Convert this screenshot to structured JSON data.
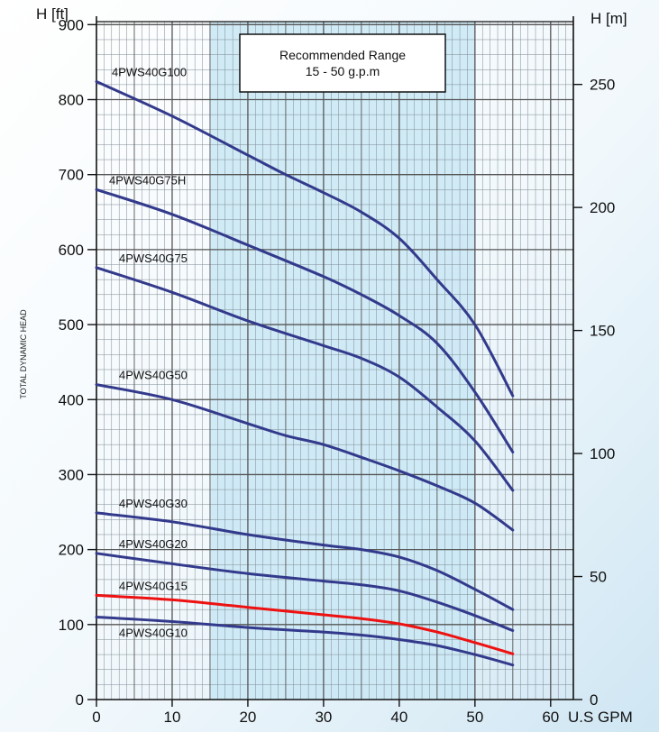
{
  "chart_data": {
    "type": "line",
    "y_axis_label": "TOTAL DYNAMIC HEAD",
    "y_unit_left": "H [ft]",
    "y_unit_right": "H [m]",
    "x_unit": "U.S GPM",
    "xlim": [
      0,
      63
    ],
    "ylim_ft": [
      0,
      900
    ],
    "x_ticks": [
      0,
      10,
      20,
      30,
      40,
      50,
      60
    ],
    "y_ticks_ft": [
      0,
      100,
      200,
      300,
      400,
      500,
      600,
      700,
      800,
      900
    ],
    "y_ticks_m": [
      0,
      50,
      100,
      150,
      200,
      250
    ],
    "grid": true,
    "recommended_range": {
      "line1": "Recommended Range",
      "line2": "15 - 50 g.p.m",
      "x_start": 15,
      "x_end": 50,
      "color": "#c9e7f4"
    },
    "series": [
      {
        "name": "4PWS40G100",
        "color": "#333a8c",
        "x": [
          0,
          10,
          20,
          25,
          30,
          35,
          40,
          45,
          50,
          55
        ],
        "y": [
          824,
          778,
          726,
          700,
          676,
          650,
          615,
          560,
          500,
          405
        ]
      },
      {
        "name": "4PWS40G75H",
        "color": "#333a8c",
        "x": [
          0,
          10,
          20,
          30,
          35,
          40,
          45,
          50,
          55
        ],
        "y": [
          680,
          647,
          606,
          564,
          540,
          512,
          475,
          410,
          330
        ]
      },
      {
        "name": "4PWS40G75",
        "color": "#333a8c",
        "x": [
          0,
          10,
          20,
          30,
          35,
          40,
          45,
          50,
          55
        ],
        "y": [
          576,
          543,
          505,
          472,
          455,
          430,
          390,
          345,
          279
        ]
      },
      {
        "name": "4PWS40G50",
        "color": "#333a8c",
        "x": [
          0,
          10,
          20,
          25,
          30,
          35,
          40,
          45,
          50,
          55
        ],
        "y": [
          420,
          400,
          368,
          352,
          340,
          323,
          305,
          285,
          262,
          226
        ]
      },
      {
        "name": "4PWS40G30",
        "color": "#333a8c",
        "x": [
          0,
          10,
          20,
          30,
          35,
          40,
          45,
          50,
          55
        ],
        "y": [
          249,
          237,
          220,
          206,
          200,
          190,
          172,
          147,
          120
        ]
      },
      {
        "name": "4PWS40G20",
        "color": "#333a8c",
        "x": [
          0,
          10,
          20,
          30,
          35,
          40,
          45,
          50,
          55
        ],
        "y": [
          195,
          181,
          168,
          158,
          153,
          145,
          130,
          112,
          92
        ]
      },
      {
        "name": "4PWS40G15",
        "color": "#ee1111",
        "x": [
          0,
          10,
          20,
          30,
          35,
          40,
          45,
          50,
          55
        ],
        "y": [
          139,
          133,
          123,
          113,
          108,
          101,
          90,
          76,
          61
        ]
      },
      {
        "name": "4PWS40G10",
        "color": "#333a8c",
        "x": [
          0,
          10,
          20,
          30,
          35,
          40,
          45,
          50,
          55
        ],
        "y": [
          110,
          104,
          96,
          90,
          86,
          80,
          72,
          60,
          46
        ]
      }
    ]
  }
}
